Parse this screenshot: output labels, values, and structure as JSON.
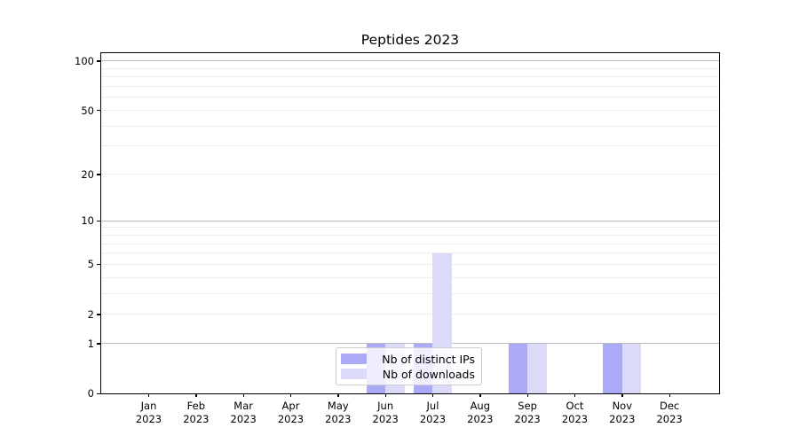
{
  "title": "Peptides 2023",
  "legend": {
    "items": [
      {
        "label": "Nb of distinct IPs",
        "color": "#aaaaf7"
      },
      {
        "label": "Nb of downloads",
        "color": "#dbdbf9"
      }
    ]
  },
  "axes": {
    "x_tick_year": "2023",
    "y_tick_labels": [
      "100",
      "50",
      "20",
      "10",
      "5",
      "2",
      "1",
      "0"
    ]
  },
  "chart_data": {
    "type": "bar",
    "title": "Peptides 2023",
    "categories": [
      "Jan 2023",
      "Feb 2023",
      "Mar 2023",
      "Apr 2023",
      "May 2023",
      "Jun 2023",
      "Jul 2023",
      "Aug 2023",
      "Sep 2023",
      "Oct 2023",
      "Nov 2023",
      "Dec 2023"
    ],
    "x_tick_months": [
      "Jan",
      "Feb",
      "Mar",
      "Apr",
      "May",
      "Jun",
      "Jul",
      "Aug",
      "Sep",
      "Oct",
      "Nov",
      "Dec"
    ],
    "series": [
      {
        "name": "Nb of distinct IPs",
        "color": "#aaaaf7",
        "values": [
          0,
          0,
          0,
          0,
          0,
          1,
          1,
          0,
          1,
          0,
          1,
          0
        ]
      },
      {
        "name": "Nb of downloads",
        "color": "#dbdbf9",
        "values": [
          0,
          0,
          0,
          0,
          0,
          1,
          6,
          0,
          1,
          0,
          1,
          0
        ]
      }
    ],
    "yscale": "log1p",
    "ylim": [
      0,
      115
    ],
    "yticks_labeled": [
      0,
      1,
      2,
      5,
      10,
      20,
      50,
      100
    ],
    "yticks_major_grid": [
      1,
      10,
      100
    ],
    "yticks_minor_grid": [
      2,
      3,
      4,
      5,
      6,
      7,
      8,
      9,
      20,
      30,
      40,
      50,
      60,
      70,
      80,
      90
    ],
    "grid": "horizontal",
    "legend_position": "inside-bottom-center",
    "grid_major_color": "#bbbbbb",
    "grid_minor_color": "#ededed"
  }
}
